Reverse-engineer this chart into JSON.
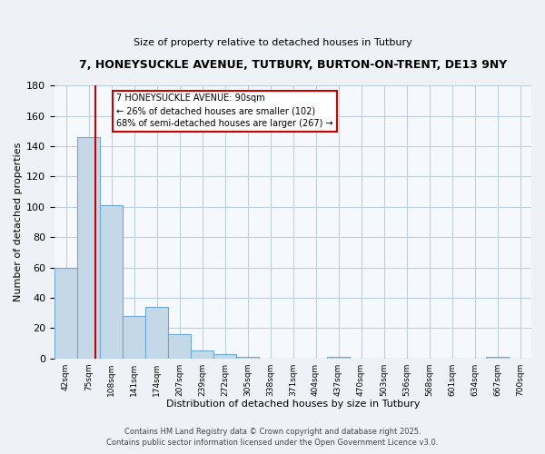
{
  "title1": "7, HONEYSUCKLE AVENUE, TUTBURY, BURTON-ON-TRENT, DE13 9NY",
  "title2": "Size of property relative to detached houses in Tutbury",
  "xlabel": "Distribution of detached houses by size in Tutbury",
  "ylabel": "Number of detached properties",
  "bar_labels": [
    "42sqm",
    "75sqm",
    "108sqm",
    "141sqm",
    "174sqm",
    "207sqm",
    "239sqm",
    "272sqm",
    "305sqm",
    "338sqm",
    "371sqm",
    "404sqm",
    "437sqm",
    "470sqm",
    "503sqm",
    "536sqm",
    "568sqm",
    "601sqm",
    "634sqm",
    "667sqm",
    "700sqm"
  ],
  "bar_values": [
    60,
    146,
    101,
    28,
    34,
    16,
    5,
    3,
    1,
    0,
    0,
    0,
    1,
    0,
    0,
    0,
    0,
    0,
    0,
    1,
    0
  ],
  "bar_color": "#c5d8e8",
  "bar_edge_color": "#6aaad4",
  "reference_line_color": "#cc0000",
  "annotation_text": "7 HONEYSUCKLE AVENUE: 90sqm\n← 26% of detached houses are smaller (102)\n68% of semi-detached houses are larger (267) →",
  "annotation_box_color": "#ffffff",
  "annotation_box_edge": "#cc0000",
  "ylim": [
    0,
    180
  ],
  "yticks": [
    0,
    20,
    40,
    60,
    80,
    100,
    120,
    140,
    160,
    180
  ],
  "footer1": "Contains HM Land Registry data © Crown copyright and database right 2025.",
  "footer2": "Contains public sector information licensed under the Open Government Licence v3.0.",
  "bg_color": "#eef2f7",
  "plot_bg_color": "#f5f8fc",
  "grid_color": "#c0cfe0"
}
